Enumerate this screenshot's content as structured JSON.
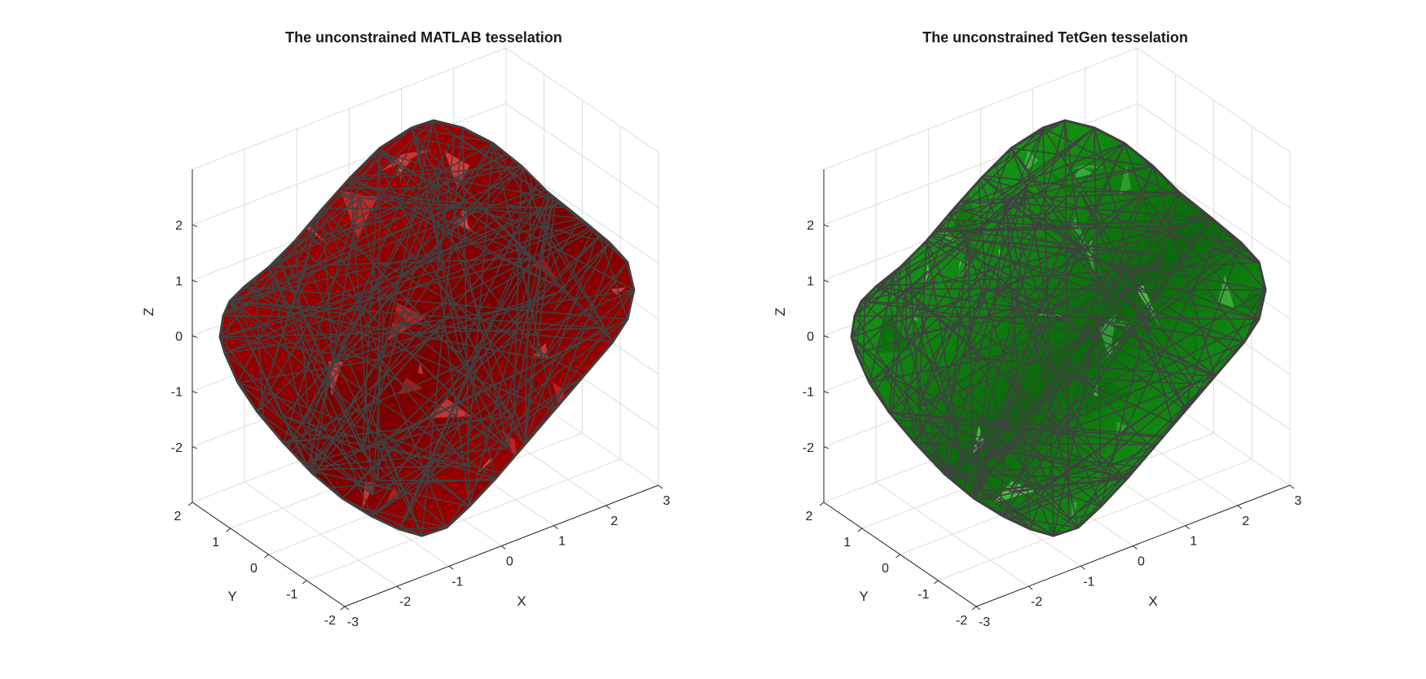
{
  "chart_data": [
    {
      "type": "surface-3d",
      "title": "The unconstrained MATLAB tesselation",
      "xlabel": "X",
      "ylabel": "Y",
      "zlabel": "Z",
      "xlim": [
        -3,
        3
      ],
      "ylim": [
        -2,
        2
      ],
      "zlim": [
        -3,
        3
      ],
      "xticks": [
        "-3",
        "-2",
        "-1",
        "0",
        "1",
        "2",
        "3"
      ],
      "yticks": [
        "-2",
        "-1",
        "0",
        "1",
        "2"
      ],
      "zticks": [
        "-2",
        "-1",
        "0",
        "1",
        "2"
      ],
      "face_color": "#c00000",
      "face_color_light": "#ff6a6a",
      "face_color_dark": "#7a0000",
      "edge_color": "#404040",
      "grid": true
    },
    {
      "type": "surface-3d",
      "title": "The unconstrained TetGen tesselation",
      "xlabel": "X",
      "ylabel": "Y",
      "zlabel": "Z",
      "xlim": [
        -3,
        3
      ],
      "ylim": [
        -2,
        2
      ],
      "zlim": [
        -3,
        3
      ],
      "xticks": [
        "-3",
        "-2",
        "-1",
        "0",
        "1",
        "2",
        "3"
      ],
      "yticks": [
        "-2",
        "-1",
        "0",
        "1",
        "2"
      ],
      "zticks": [
        "-2",
        "-1",
        "0",
        "1",
        "2"
      ],
      "face_color": "#17b217",
      "face_color_light": "#7df07d",
      "face_color_dark": "#0a6a0a",
      "edge_color": "#404040",
      "grid": true
    }
  ]
}
